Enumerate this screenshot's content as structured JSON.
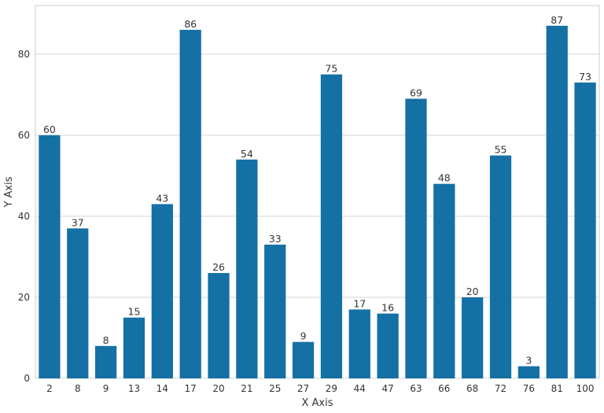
{
  "chart_data": {
    "type": "bar",
    "categories": [
      "2",
      "8",
      "9",
      "13",
      "14",
      "17",
      "20",
      "21",
      "25",
      "27",
      "29",
      "44",
      "47",
      "63",
      "66",
      "68",
      "72",
      "76",
      "81",
      "100"
    ],
    "values": [
      60,
      37,
      8,
      15,
      43,
      86,
      26,
      54,
      33,
      9,
      75,
      17,
      16,
      69,
      48,
      20,
      55,
      3,
      87,
      73
    ],
    "xlabel": "X Axis",
    "ylabel": "Y Axis",
    "ylim": [
      0,
      92
    ],
    "yticks": [
      0,
      20,
      40,
      60,
      80
    ],
    "grid": true,
    "bar_color": "#1470a5",
    "grid_color": "#d5d5d5",
    "frame_color": "#cccccc"
  }
}
